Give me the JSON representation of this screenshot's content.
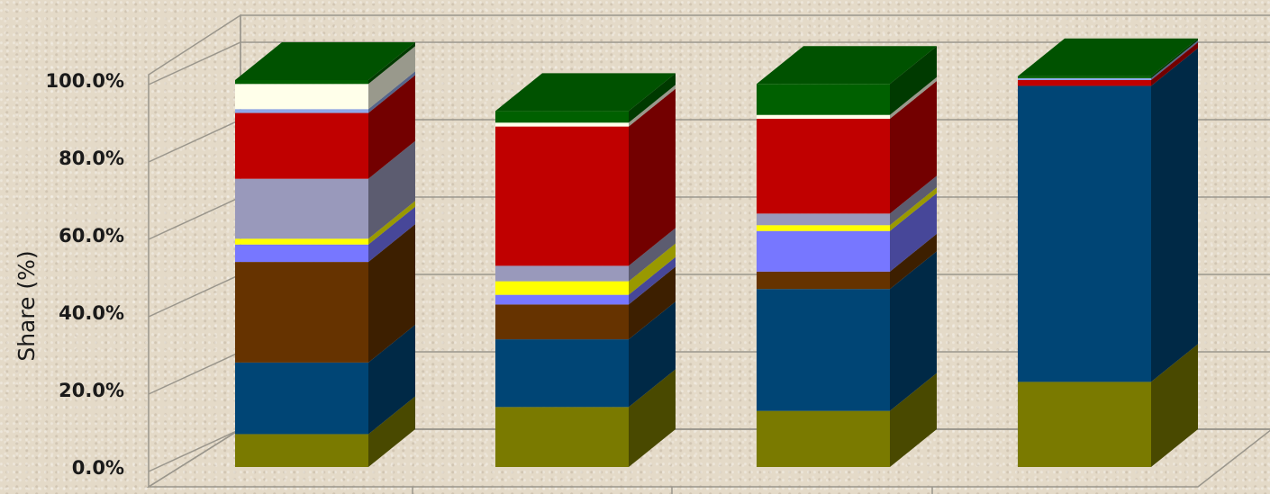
{
  "chart_data": {
    "type": "bar",
    "stacked": true,
    "three_d": true,
    "title": "",
    "xlabel": "",
    "ylabel": "Share (%)",
    "ylim": [
      0,
      100
    ],
    "y_ticks": [
      "0.0%",
      "20.0%",
      "40.0%",
      "60.0%",
      "80.0%",
      "100.0%"
    ],
    "categories": [
      "",
      "",
      "",
      ""
    ],
    "grid": true,
    "legend": "none",
    "series": [
      {
        "color": "#7a7a00",
        "values": [
          8.5,
          15.5,
          14.5,
          22.0
        ]
      },
      {
        "color": "#004575",
        "values": [
          18.5,
          17.5,
          31.5,
          76.5
        ]
      },
      {
        "color": "#663300",
        "values": [
          26.0,
          9.0,
          4.5,
          0.0
        ]
      },
      {
        "color": "#7777ff",
        "values": [
          4.5,
          2.5,
          10.5,
          0.0
        ]
      },
      {
        "color": "#ffff00",
        "values": [
          1.5,
          3.5,
          1.5,
          0.0
        ]
      },
      {
        "color": "#9999bb",
        "values": [
          15.5,
          4.0,
          3.0,
          0.0
        ]
      },
      {
        "color": "#c00000",
        "values": [
          17.0,
          36.0,
          24.5,
          1.5
        ]
      },
      {
        "color": "#8fa8e8",
        "values": [
          1.0,
          0.0,
          0.0,
          0.5
        ]
      },
      {
        "color": "#ffffea",
        "values": [
          6.5,
          1.0,
          1.0,
          0.0
        ]
      },
      {
        "color": "#006000",
        "values": [
          1.0,
          3.0,
          8.0,
          0.5
        ]
      }
    ]
  }
}
